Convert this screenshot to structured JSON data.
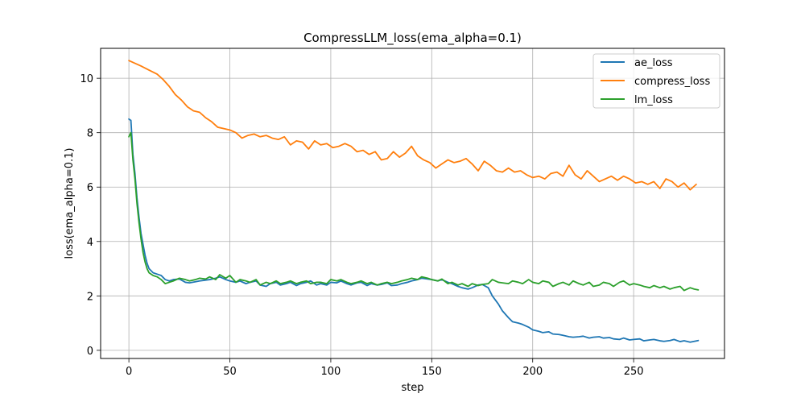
{
  "chart_data": {
    "type": "line",
    "title": "CompressLLM_loss(ema_alpha=0.1)",
    "xlabel": "step",
    "ylabel": "loss(ema_alpha=0.1)",
    "xlim": [
      -14,
      295
    ],
    "ylim": [
      -0.3,
      11.1
    ],
    "xticks": [
      0,
      50,
      100,
      150,
      200,
      250
    ],
    "yticks": [
      0,
      2,
      4,
      6,
      8,
      10
    ],
    "grid": true,
    "legend_position": "top-right",
    "series": [
      {
        "name": "ae_loss",
        "color": "#1f77b4",
        "x": [
          0,
          1,
          2,
          3,
          4,
          5,
          6,
          7,
          8,
          9,
          10,
          12,
          14,
          16,
          18,
          20,
          22,
          25,
          28,
          30,
          33,
          35,
          38,
          40,
          43,
          45,
          48,
          50,
          53,
          55,
          58,
          60,
          63,
          65,
          68,
          70,
          73,
          75,
          78,
          80,
          83,
          85,
          88,
          90,
          93,
          95,
          98,
          100,
          103,
          105,
          108,
          110,
          113,
          115,
          118,
          120,
          123,
          125,
          128,
          130,
          133,
          135,
          138,
          140,
          143,
          145,
          148,
          150,
          153,
          155,
          158,
          160,
          163,
          165,
          168,
          170,
          173,
          175,
          178,
          180,
          183,
          185,
          188,
          190,
          193,
          195,
          198,
          200,
          203,
          205,
          208,
          210,
          213,
          215,
          218,
          220,
          223,
          225,
          228,
          230,
          233,
          235,
          238,
          240,
          243,
          245,
          248,
          250,
          253,
          255,
          258,
          260,
          263,
          265,
          268,
          270,
          273,
          275,
          278,
          280,
          282
        ],
        "y": [
          8.5,
          8.45,
          7.2,
          6.5,
          5.6,
          4.9,
          4.3,
          3.9,
          3.5,
          3.2,
          3.0,
          2.85,
          2.8,
          2.75,
          2.6,
          2.55,
          2.6,
          2.62,
          2.5,
          2.48,
          2.52,
          2.55,
          2.58,
          2.6,
          2.65,
          2.7,
          2.6,
          2.55,
          2.5,
          2.55,
          2.45,
          2.5,
          2.55,
          2.4,
          2.35,
          2.45,
          2.5,
          2.4,
          2.45,
          2.5,
          2.38,
          2.45,
          2.5,
          2.55,
          2.4,
          2.45,
          2.4,
          2.5,
          2.48,
          2.55,
          2.45,
          2.4,
          2.48,
          2.5,
          2.38,
          2.45,
          2.4,
          2.42,
          2.48,
          2.38,
          2.4,
          2.45,
          2.5,
          2.55,
          2.6,
          2.65,
          2.62,
          2.6,
          2.55,
          2.6,
          2.5,
          2.45,
          2.35,
          2.3,
          2.25,
          2.3,
          2.4,
          2.42,
          2.3,
          2.0,
          1.7,
          1.45,
          1.2,
          1.05,
          1.0,
          0.95,
          0.85,
          0.75,
          0.7,
          0.65,
          0.68,
          0.6,
          0.58,
          0.55,
          0.5,
          0.48,
          0.5,
          0.52,
          0.45,
          0.48,
          0.5,
          0.45,
          0.47,
          0.42,
          0.4,
          0.45,
          0.38,
          0.4,
          0.42,
          0.35,
          0.38,
          0.4,
          0.35,
          0.33,
          0.36,
          0.4,
          0.32,
          0.35,
          0.3,
          0.33,
          0.36
        ]
      },
      {
        "name": "compress_loss",
        "color": "#ff7f0e",
        "x": [
          0,
          3,
          6,
          10,
          14,
          17,
          20,
          23,
          26,
          29,
          32,
          35,
          38,
          41,
          44,
          47,
          50,
          53,
          56,
          59,
          62,
          65,
          68,
          71,
          74,
          77,
          80,
          83,
          86,
          89,
          92,
          95,
          98,
          101,
          104,
          107,
          110,
          113,
          116,
          119,
          122,
          125,
          128,
          131,
          134,
          137,
          140,
          143,
          146,
          149,
          152,
          155,
          158,
          161,
          164,
          167,
          170,
          173,
          176,
          179,
          182,
          185,
          188,
          191,
          194,
          197,
          200,
          203,
          206,
          209,
          212,
          215,
          218,
          221,
          224,
          227,
          230,
          233,
          236,
          239,
          242,
          245,
          248,
          251,
          254,
          257,
          260,
          263,
          266,
          269,
          272,
          275,
          278,
          281
        ],
        "y": [
          10.65,
          10.55,
          10.45,
          10.3,
          10.15,
          9.95,
          9.7,
          9.4,
          9.2,
          8.95,
          8.8,
          8.75,
          8.55,
          8.4,
          8.2,
          8.15,
          8.1,
          8.0,
          7.8,
          7.9,
          7.95,
          7.85,
          7.9,
          7.8,
          7.75,
          7.85,
          7.55,
          7.7,
          7.65,
          7.4,
          7.7,
          7.55,
          7.6,
          7.45,
          7.5,
          7.6,
          7.5,
          7.3,
          7.35,
          7.2,
          7.3,
          7.0,
          7.05,
          7.3,
          7.1,
          7.25,
          7.5,
          7.15,
          7.0,
          6.9,
          6.7,
          6.85,
          7.0,
          6.9,
          6.95,
          7.05,
          6.85,
          6.6,
          6.95,
          6.8,
          6.6,
          6.55,
          6.7,
          6.55,
          6.6,
          6.45,
          6.35,
          6.4,
          6.3,
          6.5,
          6.55,
          6.4,
          6.8,
          6.45,
          6.3,
          6.6,
          6.4,
          6.2,
          6.3,
          6.4,
          6.25,
          6.4,
          6.3,
          6.15,
          6.2,
          6.1,
          6.2,
          5.95,
          6.3,
          6.2,
          6.0,
          6.15,
          5.9,
          6.1
        ]
      },
      {
        "name": "lm_loss",
        "color": "#2ca02c",
        "x": [
          0,
          1,
          2,
          3,
          4,
          5,
          6,
          7,
          8,
          9,
          10,
          12,
          14,
          16,
          18,
          20,
          22,
          25,
          28,
          30,
          33,
          35,
          38,
          40,
          43,
          45,
          48,
          50,
          53,
          55,
          58,
          60,
          63,
          65,
          68,
          70,
          73,
          75,
          78,
          80,
          83,
          85,
          88,
          90,
          93,
          95,
          98,
          100,
          103,
          105,
          108,
          110,
          113,
          115,
          118,
          120,
          123,
          125,
          128,
          130,
          133,
          135,
          138,
          140,
          143,
          145,
          148,
          150,
          153,
          155,
          158,
          160,
          163,
          165,
          168,
          170,
          173,
          175,
          178,
          180,
          183,
          185,
          188,
          190,
          193,
          195,
          198,
          200,
          203,
          205,
          208,
          210,
          213,
          215,
          218,
          220,
          223,
          225,
          228,
          230,
          233,
          235,
          238,
          240,
          243,
          245,
          248,
          250,
          253,
          255,
          258,
          260,
          263,
          265,
          268,
          270,
          273,
          275,
          278,
          280,
          282
        ],
        "y": [
          7.85,
          8.0,
          7.0,
          6.3,
          5.4,
          4.7,
          4.1,
          3.6,
          3.25,
          3.0,
          2.85,
          2.75,
          2.7,
          2.6,
          2.45,
          2.5,
          2.55,
          2.65,
          2.6,
          2.55,
          2.6,
          2.65,
          2.62,
          2.7,
          2.6,
          2.78,
          2.65,
          2.75,
          2.5,
          2.6,
          2.55,
          2.5,
          2.6,
          2.4,
          2.5,
          2.45,
          2.55,
          2.45,
          2.5,
          2.55,
          2.45,
          2.5,
          2.55,
          2.45,
          2.5,
          2.5,
          2.45,
          2.6,
          2.55,
          2.6,
          2.5,
          2.45,
          2.5,
          2.55,
          2.45,
          2.5,
          2.4,
          2.45,
          2.5,
          2.45,
          2.5,
          2.55,
          2.6,
          2.65,
          2.6,
          2.7,
          2.65,
          2.6,
          2.55,
          2.62,
          2.45,
          2.5,
          2.4,
          2.45,
          2.35,
          2.45,
          2.38,
          2.42,
          2.45,
          2.6,
          2.5,
          2.48,
          2.45,
          2.55,
          2.5,
          2.45,
          2.6,
          2.5,
          2.45,
          2.55,
          2.5,
          2.35,
          2.45,
          2.5,
          2.4,
          2.55,
          2.45,
          2.4,
          2.5,
          2.35,
          2.4,
          2.5,
          2.45,
          2.35,
          2.5,
          2.55,
          2.4,
          2.45,
          2.4,
          2.35,
          2.3,
          2.38,
          2.3,
          2.35,
          2.25,
          2.3,
          2.35,
          2.2,
          2.3,
          2.25,
          2.22
        ]
      }
    ]
  }
}
